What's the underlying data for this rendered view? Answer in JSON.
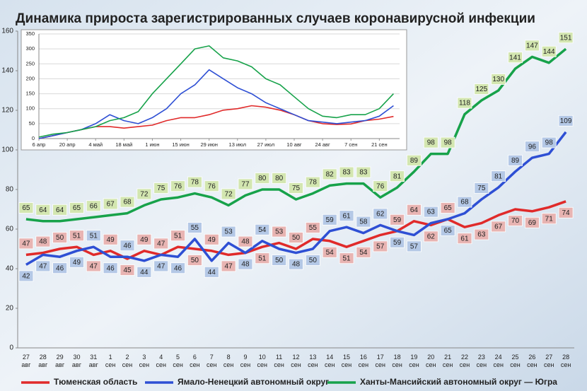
{
  "chart_data": [
    {
      "type": "line",
      "title": "Динамика прироста зарегистрированных случаев коронавирусной инфекции",
      "categories": [
        "27 авг",
        "28 авг",
        "29 авг",
        "30 авг",
        "31 авг",
        "1 сен",
        "2 сен",
        "3 сен",
        "4 сен",
        "5 сен",
        "6 сен",
        "7 сен",
        "8 сен",
        "9 сен",
        "10 сен",
        "11 сен",
        "12 сен",
        "13 сен",
        "14 сен",
        "15 сен",
        "16 сен",
        "17 сен",
        "18 сен",
        "19 сен",
        "20 сен",
        "21 сен",
        "22 сен",
        "23 сен",
        "24 сен",
        "25 сен",
        "26 сен",
        "27 сен",
        "28 сен"
      ],
      "series": [
        {
          "name": "Тюменская область",
          "color": "#e02a2a",
          "values": [
            47,
            48,
            50,
            51,
            47,
            49,
            45,
            49,
            47,
            51,
            50,
            49,
            47,
            48,
            51,
            53,
            50,
            55,
            54,
            51,
            54,
            57,
            59,
            64,
            62,
            65,
            61,
            63,
            67,
            70,
            69,
            71,
            74
          ]
        },
        {
          "name": "Ямало-Ненецкий автономный округ",
          "color": "#2e4fd4",
          "values": [
            42,
            47,
            46,
            49,
            51,
            46,
            46,
            44,
            47,
            46,
            55,
            44,
            53,
            48,
            54,
            50,
            48,
            50,
            59,
            61,
            58,
            62,
            59,
            57,
            63,
            65,
            68,
            75,
            81,
            89,
            96,
            98,
            109
          ]
        },
        {
          "name": "Ханты-Мансийский автономный округ — Югра",
          "color": "#17a24a",
          "values": [
            65,
            64,
            64,
            65,
            66,
            67,
            68,
            72,
            75,
            76,
            78,
            76,
            72,
            77,
            80,
            80,
            75,
            78,
            82,
            83,
            83,
            76,
            81,
            89,
            98,
            98,
            118,
            125,
            130,
            141,
            147,
            144,
            151
          ]
        }
      ],
      "ylim": [
        0,
        160
      ],
      "yticks": [
        0,
        20,
        40,
        60,
        80,
        100,
        120,
        140,
        160
      ],
      "grid": false
    },
    {
      "type": "line",
      "x": [
        0,
        7,
        14,
        21,
        28,
        35,
        42,
        49,
        56,
        63,
        70,
        77,
        84,
        91,
        98,
        105,
        112,
        119,
        126,
        133,
        140,
        147,
        154,
        161,
        168,
        175
      ],
      "xlim": [
        0,
        178
      ],
      "xticks": [
        {
          "value": 0,
          "label": "6 апр"
        },
        {
          "value": 14,
          "label": "20 апр"
        },
        {
          "value": 28,
          "label": "4 май"
        },
        {
          "value": 42,
          "label": "18 май"
        },
        {
          "value": 56,
          "label": "1 июн"
        },
        {
          "value": 70,
          "label": "15 июн"
        },
        {
          "value": 84,
          "label": "29 июн"
        },
        {
          "value": 98,
          "label": "13 июл"
        },
        {
          "value": 112,
          "label": "27 июл"
        },
        {
          "value": 126,
          "label": "10 авг"
        },
        {
          "value": 140,
          "label": "24 авг"
        },
        {
          "value": 154,
          "label": "7 сен"
        },
        {
          "value": 168,
          "label": "21 сен"
        }
      ],
      "series": [
        {
          "color": "#e02a2a",
          "values": [
            0,
            10,
            20,
            30,
            40,
            40,
            35,
            40,
            45,
            60,
            70,
            70,
            80,
            95,
            100,
            110,
            105,
            95,
            80,
            60,
            50,
            47,
            49,
            60,
            65,
            74
          ]
        },
        {
          "color": "#2e4fd4",
          "values": [
            0,
            10,
            20,
            30,
            50,
            80,
            60,
            50,
            70,
            100,
            150,
            180,
            230,
            200,
            170,
            150,
            120,
            100,
            80,
            60,
            55,
            50,
            55,
            60,
            75,
            110
          ]
        },
        {
          "color": "#17a24a",
          "values": [
            5,
            15,
            20,
            30,
            40,
            60,
            70,
            90,
            150,
            200,
            250,
            300,
            310,
            270,
            260,
            240,
            200,
            180,
            140,
            100,
            75,
            70,
            80,
            80,
            100,
            150
          ]
        }
      ],
      "ylim": [
        0,
        350
      ],
      "yticks": [
        0,
        50,
        100,
        150,
        200,
        250,
        300,
        350
      ],
      "grid": true
    }
  ]
}
